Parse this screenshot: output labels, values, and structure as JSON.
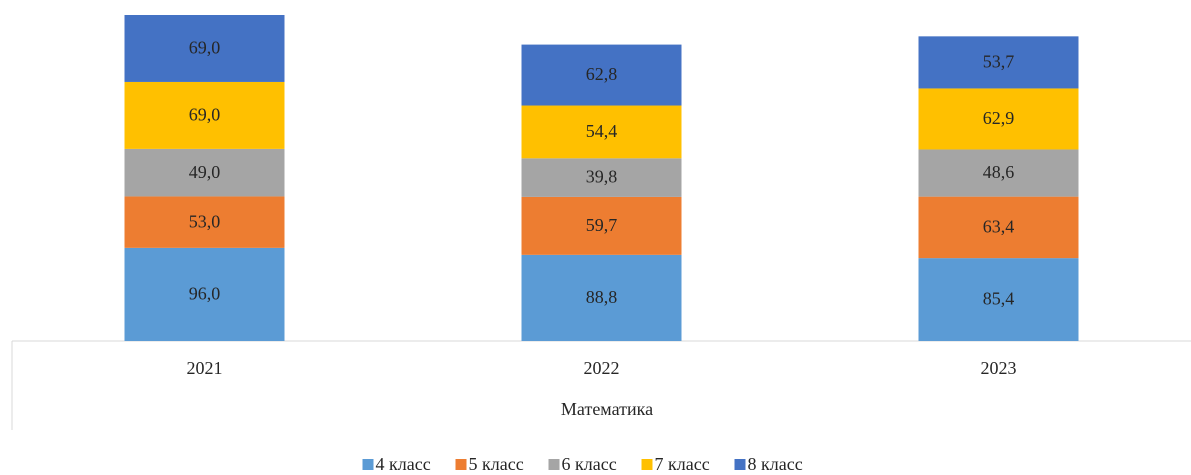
{
  "chart_data": {
    "type": "stacked_bar",
    "categories": [
      "2021",
      "2022",
      "2023"
    ],
    "xlabel": "Математика",
    "series": [
      {
        "name": "4 класс",
        "color": "#5b9bd5",
        "values": [
          96.0,
          88.8,
          85.4
        ],
        "value_labels": [
          "96,0",
          "88,8",
          "85,4"
        ]
      },
      {
        "name": "5 класс",
        "color": "#ed7d31",
        "values": [
          53.0,
          59.7,
          63.4
        ],
        "value_labels": [
          "53,0",
          "59,7",
          "63,4"
        ]
      },
      {
        "name": "6 класс",
        "color": "#a5a5a5",
        "values": [
          49.0,
          39.8,
          48.6
        ],
        "value_labels": [
          "49,0",
          "39,8",
          "48,6"
        ]
      },
      {
        "name": "7 класс",
        "color": "#ffc000",
        "values": [
          69.0,
          54.4,
          62.9
        ],
        "value_labels": [
          "69,0",
          "54,4",
          "62,9"
        ]
      },
      {
        "name": "8 класс",
        "color": "#4472c4",
        "values": [
          69.0,
          62.8,
          53.7
        ],
        "value_labels": [
          "69,0",
          "62,8",
          "53,7"
        ]
      }
    ],
    "legend": "bottom"
  }
}
